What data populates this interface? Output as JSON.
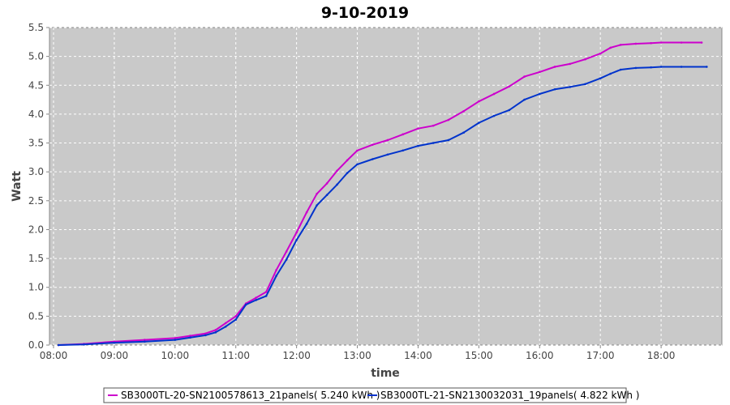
{
  "chart_data": {
    "type": "line",
    "title": "9-10-2019",
    "xlabel": "time",
    "ylabel": "Watt",
    "xlim": [
      "07:56",
      "19:00"
    ],
    "ylim": [
      0,
      5.5
    ],
    "x_ticks": [
      "08:00",
      "09:00",
      "10:00",
      "11:00",
      "12:00",
      "13:00",
      "14:00",
      "15:00",
      "16:00",
      "17:00",
      "18:00"
    ],
    "y_ticks": [
      "0.0",
      "0.5",
      "1.0",
      "1.5",
      "2.0",
      "2.5",
      "3.0",
      "3.5",
      "4.0",
      "4.5",
      "5.0",
      "5.5"
    ],
    "grid": true,
    "legend_position": "bottom",
    "series": [
      {
        "name": "SB3000TL-20-SN2100578613_21panels( 5.240 kWh )",
        "color": "#cc00cc",
        "x": [
          "08:05",
          "08:30",
          "09:00",
          "09:30",
          "10:00",
          "10:15",
          "10:30",
          "10:40",
          "10:50",
          "11:00",
          "11:10",
          "11:20",
          "11:30",
          "11:40",
          "11:50",
          "12:00",
          "12:10",
          "12:20",
          "12:30",
          "12:40",
          "12:50",
          "13:00",
          "13:15",
          "13:30",
          "13:45",
          "14:00",
          "14:15",
          "14:30",
          "14:45",
          "15:00",
          "15:15",
          "15:30",
          "15:45",
          "16:00",
          "16:15",
          "16:30",
          "16:45",
          "17:00",
          "17:10",
          "17:20",
          "17:35",
          "17:50",
          "18:00",
          "18:20",
          "18:40"
        ],
        "values": [
          0.0,
          0.02,
          0.06,
          0.09,
          0.12,
          0.16,
          0.2,
          0.26,
          0.38,
          0.5,
          0.72,
          0.82,
          0.92,
          1.3,
          1.62,
          1.95,
          2.3,
          2.62,
          2.8,
          3.02,
          3.2,
          3.37,
          3.47,
          3.55,
          3.65,
          3.75,
          3.8,
          3.9,
          4.05,
          4.22,
          4.35,
          4.48,
          4.65,
          4.73,
          4.82,
          4.87,
          4.95,
          5.05,
          5.15,
          5.2,
          5.22,
          5.23,
          5.24,
          5.24,
          5.24
        ]
      },
      {
        "name": "SB3000TL-21-SN2130032031_19panels( 4.822 kWh )",
        "color": "#0033cc",
        "x": [
          "08:05",
          "08:30",
          "09:00",
          "09:30",
          "10:00",
          "10:15",
          "10:30",
          "10:40",
          "10:50",
          "11:00",
          "11:10",
          "11:20",
          "11:30",
          "11:40",
          "11:50",
          "12:00",
          "12:10",
          "12:20",
          "12:30",
          "12:40",
          "12:50",
          "13:00",
          "13:15",
          "13:30",
          "13:45",
          "14:00",
          "14:15",
          "14:30",
          "14:45",
          "15:00",
          "15:15",
          "15:30",
          "15:45",
          "16:00",
          "16:15",
          "16:30",
          "16:45",
          "17:00",
          "17:10",
          "17:20",
          "17:35",
          "17:50",
          "18:00",
          "18:20",
          "18:45"
        ],
        "values": [
          0.0,
          0.01,
          0.04,
          0.06,
          0.09,
          0.13,
          0.17,
          0.22,
          0.32,
          0.44,
          0.7,
          0.78,
          0.85,
          1.2,
          1.48,
          1.82,
          2.1,
          2.42,
          2.6,
          2.78,
          2.98,
          3.13,
          3.22,
          3.3,
          3.37,
          3.45,
          3.5,
          3.55,
          3.68,
          3.85,
          3.97,
          4.07,
          4.25,
          4.35,
          4.43,
          4.47,
          4.52,
          4.62,
          4.7,
          4.77,
          4.8,
          4.81,
          4.82,
          4.82,
          4.82
        ]
      }
    ]
  }
}
